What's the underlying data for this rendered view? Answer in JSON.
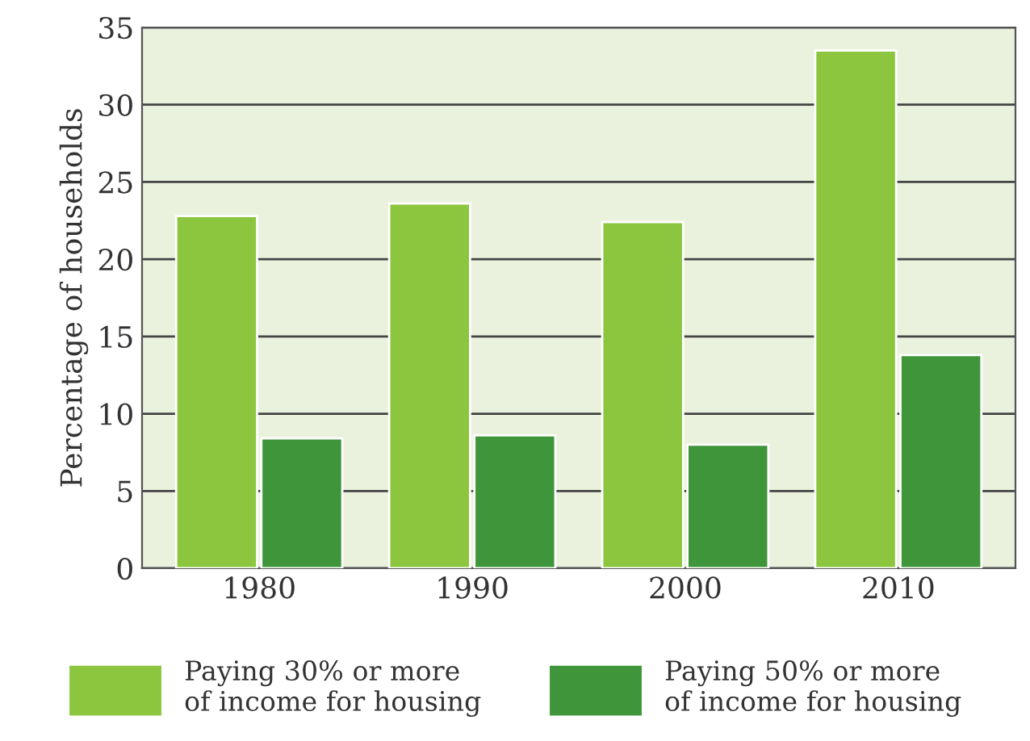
{
  "chart_data": {
    "type": "bar",
    "ylabel": "Percentage of households",
    "categories": [
      "1980",
      "1990",
      "2000",
      "2010"
    ],
    "series": [
      {
        "name": "Paying 30% or more\nof income for housing",
        "color": "#8cc63f",
        "values": [
          22.8,
          23.6,
          22.4,
          33.5
        ]
      },
      {
        "name": "Paying 50% or more\nof income for housing",
        "color": "#3f9539",
        "values": [
          8.4,
          8.6,
          8.0,
          13.8
        ]
      }
    ],
    "ylim": [
      0,
      35
    ],
    "yticks": [
      0,
      5,
      10,
      15,
      20,
      25,
      30,
      35
    ],
    "grid": "y",
    "legend": "bottom"
  }
}
